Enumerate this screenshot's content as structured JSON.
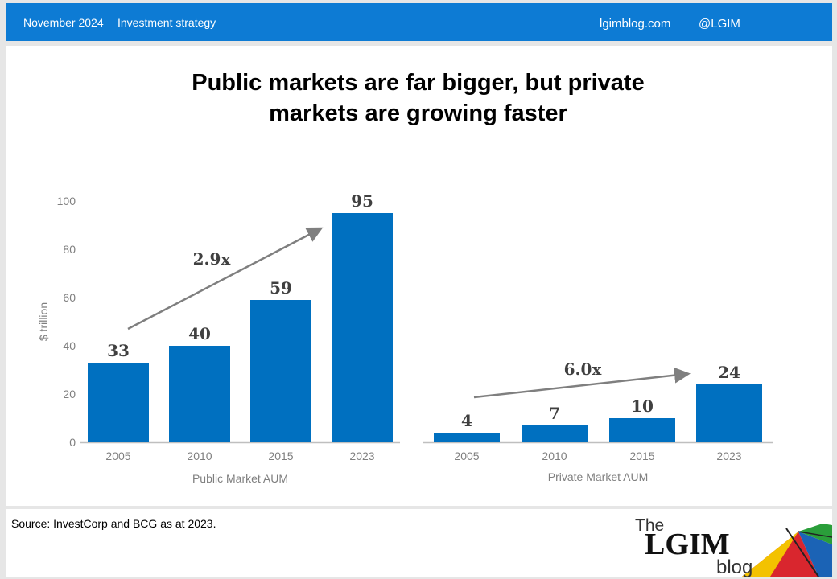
{
  "header": {
    "date": "November 2024",
    "topic": "Investment strategy",
    "site": "lgimblog.com",
    "handle": "@LGIM"
  },
  "title_line1": "Public markets are far bigger, but private",
  "title_line2": "markets are growing faster",
  "source": "Source: InvestCorp and BCG as at 2023.",
  "logo": {
    "the": "The",
    "name": "LGIM",
    "blog": "blog",
    "colors": [
      "#d9262e",
      "#1b63b5",
      "#2a9e3a",
      "#f3c200",
      "#ffffff"
    ]
  },
  "colors": {
    "header": "#0d7bd4",
    "bar": "#0070c0",
    "arrow": "#7f7f7f"
  },
  "chart_data": [
    {
      "type": "bar",
      "categories": [
        "2005",
        "2010",
        "2015",
        "2023"
      ],
      "values": [
        33,
        40,
        59,
        95
      ],
      "ylabel": "$ trillion",
      "xlabel": "Public Market AUM",
      "ylim": [
        0,
        100
      ],
      "yticks": [
        0,
        20,
        40,
        60,
        80,
        100
      ],
      "annotation": "2.9x",
      "grid": false
    },
    {
      "type": "bar",
      "categories": [
        "2005",
        "2010",
        "2015",
        "2023"
      ],
      "values": [
        4,
        7,
        10,
        24
      ],
      "xlabel": "Private Market AUM",
      "ylim": [
        0,
        100
      ],
      "annotation": "6.0x",
      "grid": false
    }
  ]
}
